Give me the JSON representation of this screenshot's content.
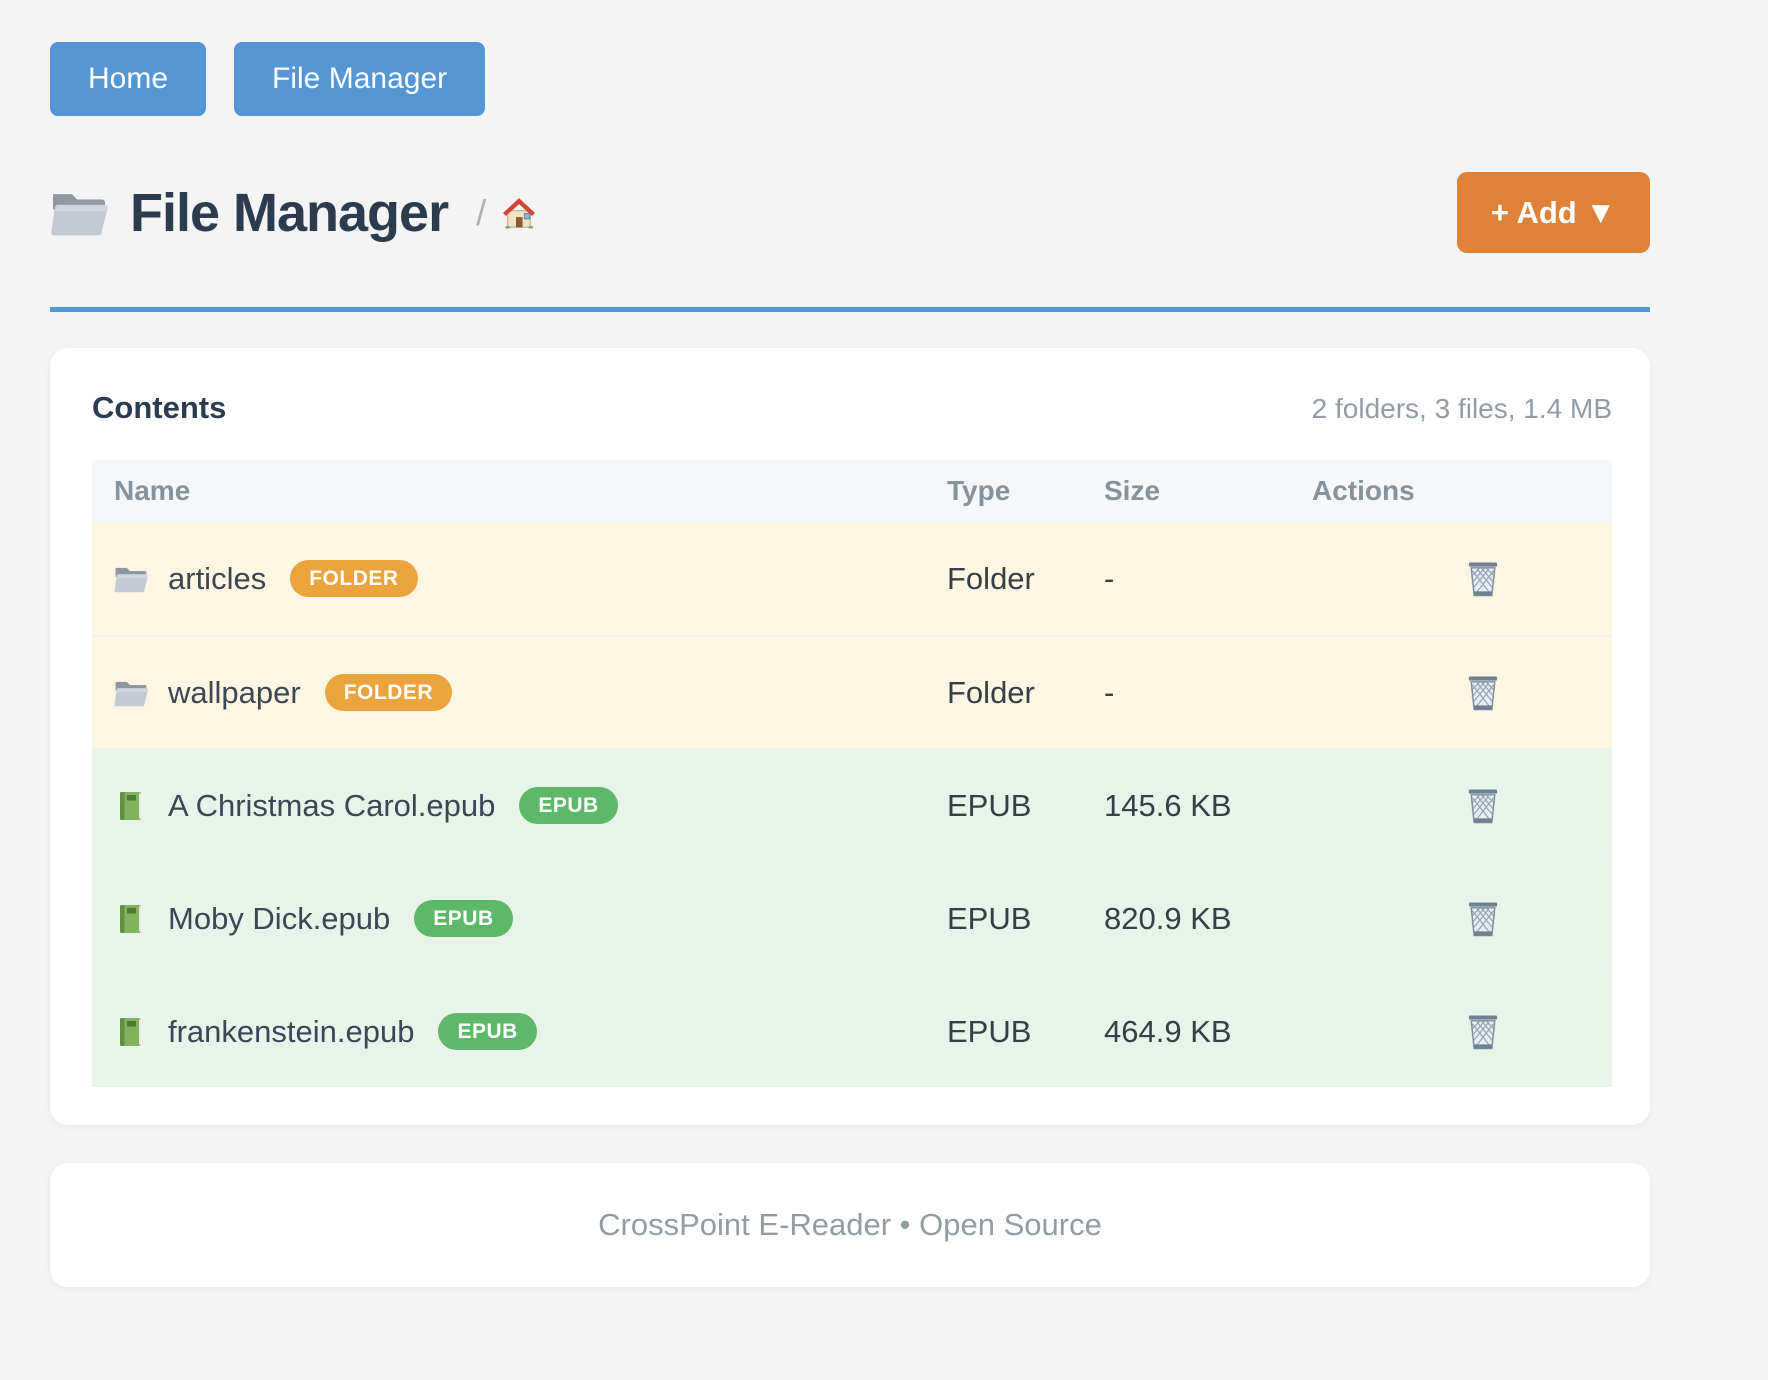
{
  "nav": {
    "buttons": [
      {
        "label": "Home"
      },
      {
        "label": "File Manager"
      }
    ]
  },
  "header": {
    "icon": "folder-icon",
    "title": "File Manager",
    "breadcrumb_separator": "/",
    "breadcrumb_home_icon": "house-icon",
    "add_button_label": "+ Add ▼"
  },
  "contents": {
    "title": "Contents",
    "summary": "2 folders, 3 files, 1.4 MB",
    "table": {
      "columns": [
        "Name",
        "Type",
        "Size",
        "Actions"
      ],
      "rows": [
        {
          "icon": "folder-icon",
          "name": "articles",
          "badge": "FOLDER",
          "badge_type": "folder",
          "type": "Folder",
          "size": "-",
          "action_icon": "wastebasket-icon"
        },
        {
          "icon": "folder-icon",
          "name": "wallpaper",
          "badge": "FOLDER",
          "badge_type": "folder",
          "type": "Folder",
          "size": "-",
          "action_icon": "wastebasket-icon"
        },
        {
          "icon": "green-book-icon",
          "name": "A Christmas Carol.epub",
          "badge": "EPUB",
          "badge_type": "epub",
          "type": "EPUB",
          "size": "145.6 KB",
          "action_icon": "wastebasket-icon"
        },
        {
          "icon": "green-book-icon",
          "name": "Moby Dick.epub",
          "badge": "EPUB",
          "badge_type": "epub",
          "type": "EPUB",
          "size": "820.9 KB",
          "action_icon": "wastebasket-icon"
        },
        {
          "icon": "green-book-icon",
          "name": "frankenstein.epub",
          "badge": "EPUB",
          "badge_type": "epub",
          "type": "EPUB",
          "size": "464.9 KB",
          "action_icon": "wastebasket-icon"
        }
      ]
    }
  },
  "footer": {
    "text": "CrossPoint E-Reader • Open Source"
  },
  "colors": {
    "accent_blue": "#5596d5",
    "accent_orange": "#dd8237",
    "badge_folder": "#eaa33d",
    "badge_epub": "#5db869",
    "row_folder_bg": "#fdf6e3",
    "row_epub_bg": "#e8f4ea"
  }
}
